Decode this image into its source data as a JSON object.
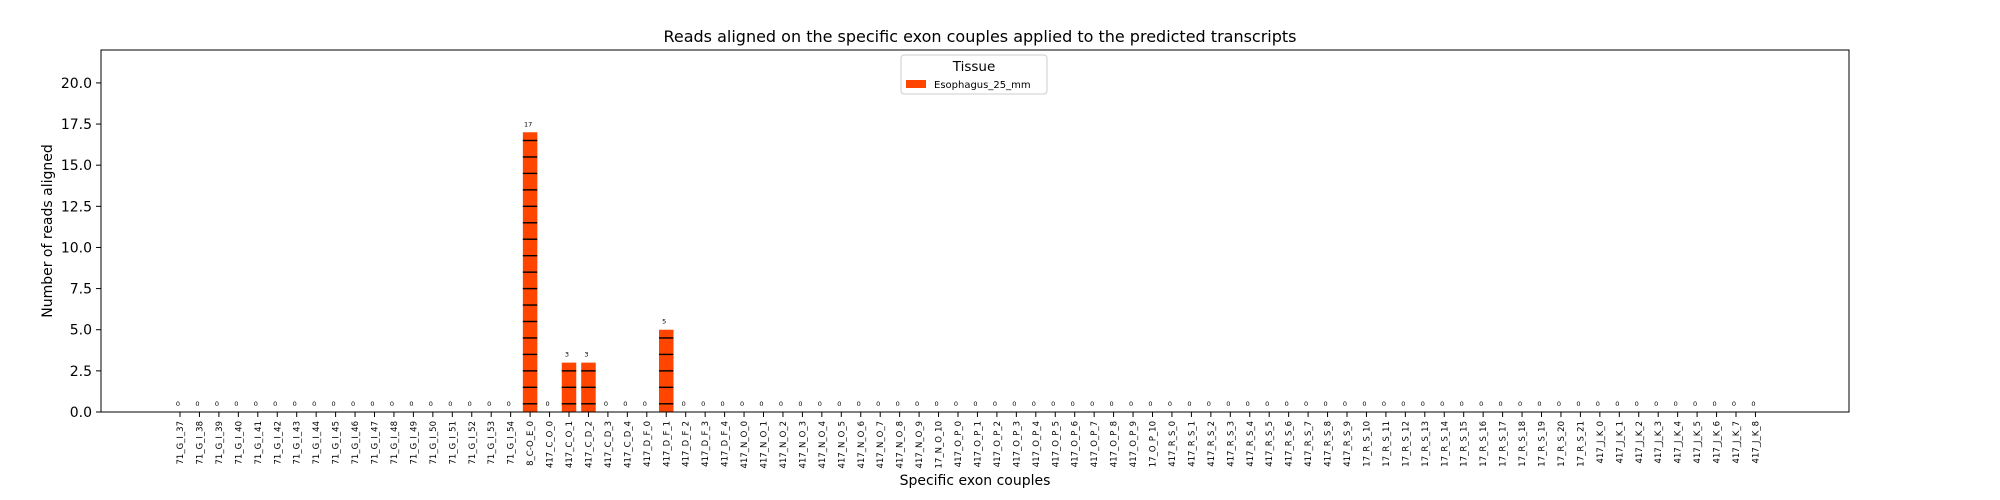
{
  "chart_data": {
    "type": "bar",
    "title": "Reads aligned on the specific exon couples applied to the predicted transcripts",
    "xlabel": "Specific exon couples",
    "ylabel": "Number of reads aligned",
    "ylim": [
      0,
      22
    ],
    "yticks": [
      0,
      2.5,
      5,
      7.5,
      10,
      12.5,
      15,
      17.5,
      20
    ],
    "ytick_labels": [
      "0.0",
      "2.5",
      "5.0",
      "7.5",
      "10.0",
      "12.5",
      "15.0",
      "17.5",
      "20.0"
    ],
    "grid": false,
    "legend": {
      "title": "Tissue",
      "placement": "top-center"
    },
    "categories": [
      "71_G_I_37",
      "71_G_I_38",
      "71_G_I_39",
      "71_G_I_40",
      "71_G_I_41",
      "71_G_I_42",
      "71_G_I_43",
      "71_G_I_44",
      "71_G_I_45",
      "71_G_I_46",
      "71_G_I_47",
      "71_G_I_48",
      "71_G_I_49",
      "71_G_I_50",
      "71_G_I_51",
      "71_G_I_52",
      "71_G_I_53",
      "71_G_I_54",
      "8_C-O_E_0",
      "417_C_O_0",
      "417_C_O_1",
      "417_C_D_2",
      "417_C_D_3",
      "417_C_D_4",
      "417_D_F_0",
      "417_D_F_1",
      "417_D_F_2",
      "417_D_F_3",
      "417_D_F_4",
      "417_N_O_0",
      "417_N_O_1",
      "417_N_O_2",
      "417_N_O_3",
      "417_N_O_4",
      "417_N_O_5",
      "417_N_O_6",
      "417_N_O_7",
      "417_N_O_8",
      "417_N_O_9",
      "17_N_O_10",
      "417_O_P_0",
      "417_O_P_1",
      "417_O_P_2",
      "417_O_P_3",
      "417_O_P_4",
      "417_O_P_5",
      "417_O_P_6",
      "417_O_P_7",
      "417_O_P_8",
      "417_O_P_9",
      "17_O_P_10",
      "417_R_S_0",
      "417_R_S_1",
      "417_R_S_2",
      "417_R_S_3",
      "417_R_S_4",
      "417_R_S_5",
      "417_R_S_6",
      "417_R_S_7",
      "417_R_S_8",
      "417_R_S_9",
      "17_R_S_10",
      "17_R_S_11",
      "17_R_S_12",
      "17_R_S_13",
      "17_R_S_14",
      "17_R_S_15",
      "17_R_S_16",
      "17_R_S_17",
      "17_R_S_18",
      "17_R_S_19",
      "17_R_S_20",
      "17_R_S_21",
      "417_J_K_0",
      "417_J_K_1",
      "417_J_K_2",
      "417_J_K_3",
      "417_J_K_4",
      "417_J_K_5",
      "417_J_K_6",
      "417_J_K_7",
      "417_J_K_8"
    ],
    "series": [
      {
        "name": "Esophagus_25_mm",
        "color": "#ff4500",
        "values": [
          0,
          0,
          0,
          0,
          0,
          0,
          0,
          0,
          0,
          0,
          0,
          0,
          0,
          0,
          0,
          0,
          0,
          0,
          17,
          0,
          3,
          3,
          0,
          0,
          0,
          5,
          0,
          0,
          0,
          0,
          0,
          0,
          0,
          0,
          0,
          0,
          0,
          0,
          0,
          0,
          0,
          0,
          0,
          0,
          0,
          0,
          0,
          0,
          0,
          0,
          0,
          0,
          0,
          0,
          0,
          0,
          0,
          0,
          0,
          0,
          0,
          0,
          0,
          0,
          0,
          0,
          0,
          0,
          0,
          0,
          0,
          0,
          0,
          0,
          0,
          0,
          0,
          0,
          0,
          0,
          0,
          0
        ]
      }
    ]
  }
}
